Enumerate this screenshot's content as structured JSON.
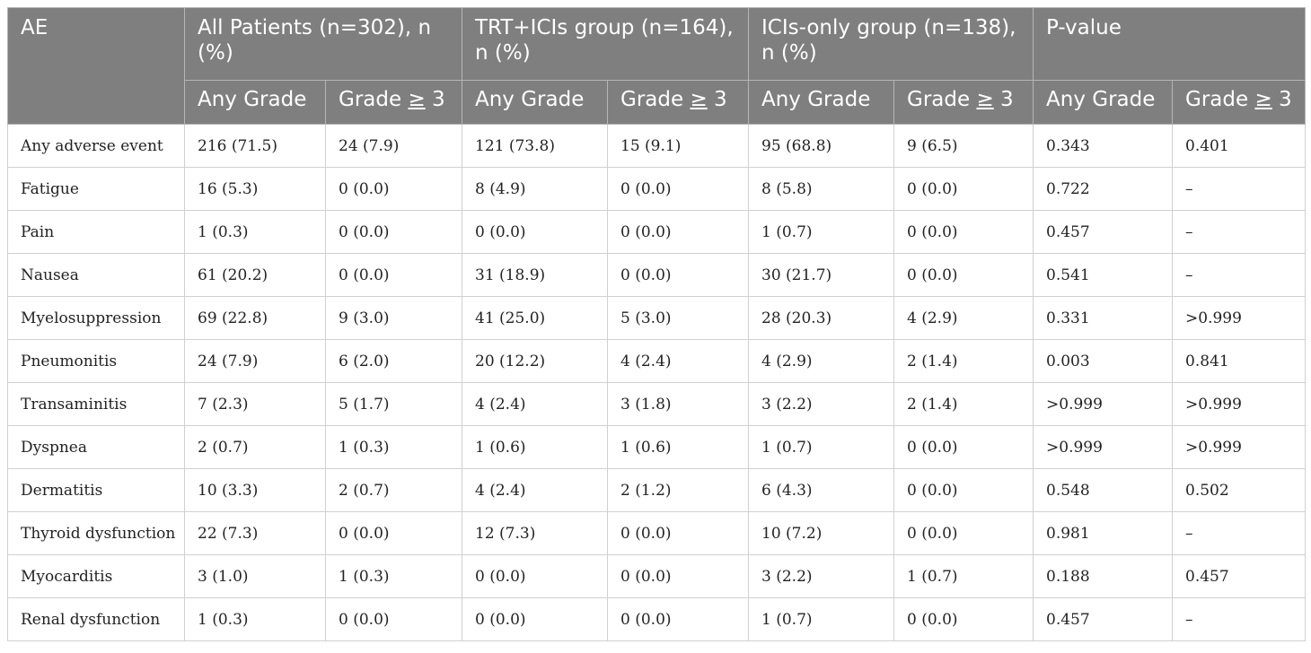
{
  "header": {
    "ae": "AE",
    "all_patients": "All Patients (n=302), n (%)",
    "trt_group": "TRT+ICIs group (n=164), n (%)",
    "icis_group": "ICIs-only group (n=138), n (%)",
    "p_value": "P-value",
    "any_grade": "Any Grade",
    "grade_prefix": "Grade ",
    "grade_symbol": "≥",
    "grade_suffix": " 3"
  },
  "rows": [
    {
      "ae": "Any adverse event",
      "cells": [
        "216 (71.5)",
        "24 (7.9)",
        "121 (73.8)",
        "15 (9.1)",
        "95 (68.8)",
        "9 (6.5)",
        "0.343",
        "0.401"
      ]
    },
    {
      "ae": "Fatigue",
      "cells": [
        "16 (5.3)",
        "0 (0.0)",
        "8 (4.9)",
        "0 (0.0)",
        "8 (5.8)",
        "0 (0.0)",
        "0.722",
        "–"
      ]
    },
    {
      "ae": "Pain",
      "cells": [
        "1 (0.3)",
        "0 (0.0)",
        "0 (0.0)",
        "0 (0.0)",
        "1 (0.7)",
        "0 (0.0)",
        "0.457",
        "–"
      ]
    },
    {
      "ae": "Nausea",
      "cells": [
        "61 (20.2)",
        "0 (0.0)",
        "31 (18.9)",
        "0 (0.0)",
        "30 (21.7)",
        "0 (0.0)",
        "0.541",
        "–"
      ]
    },
    {
      "ae": "Myelosuppression",
      "cells": [
        "69 (22.8)",
        "9 (3.0)",
        "41 (25.0)",
        "5 (3.0)",
        "28 (20.3)",
        "4 (2.9)",
        "0.331",
        ">0.999"
      ]
    },
    {
      "ae": "Pneumonitis",
      "cells": [
        "24 (7.9)",
        "6 (2.0)",
        "20 (12.2)",
        "4 (2.4)",
        "4 (2.9)",
        "2 (1.4)",
        "0.003",
        "0.841"
      ]
    },
    {
      "ae": "Transaminitis",
      "cells": [
        "7 (2.3)",
        "5 (1.7)",
        "4 (2.4)",
        "3 (1.8)",
        "3 (2.2)",
        "2 (1.4)",
        ">0.999",
        ">0.999"
      ]
    },
    {
      "ae": "Dyspnea",
      "cells": [
        "2 (0.7)",
        "1 (0.3)",
        "1 (0.6)",
        "1 (0.6)",
        "1 (0.7)",
        "0 (0.0)",
        ">0.999",
        ">0.999"
      ]
    },
    {
      "ae": "Dermatitis",
      "cells": [
        "10 (3.3)",
        "2 (0.7)",
        "4 (2.4)",
        "2 (1.2)",
        "6 (4.3)",
        "0 (0.0)",
        "0.548",
        "0.502"
      ]
    },
    {
      "ae": "Thyroid dysfunction",
      "cells": [
        "22 (7.3)",
        "0 (0.0)",
        "12 (7.3)",
        "0 (0.0)",
        "10 (7.2)",
        "0 (0.0)",
        "0.981",
        "–"
      ]
    },
    {
      "ae": "Myocarditis",
      "cells": [
        "3 (1.0)",
        "1 (0.3)",
        "0 (0.0)",
        "0 (0.0)",
        "3 (2.2)",
        "1 (0.7)",
        "0.188",
        "0.457"
      ]
    },
    {
      "ae": "Renal dysfunction",
      "cells": [
        "1 (0.3)",
        "0 (0.0)",
        "0 (0.0)",
        "0 (0.0)",
        "1 (0.7)",
        "0 (0.0)",
        "0.457",
        "–"
      ]
    }
  ]
}
